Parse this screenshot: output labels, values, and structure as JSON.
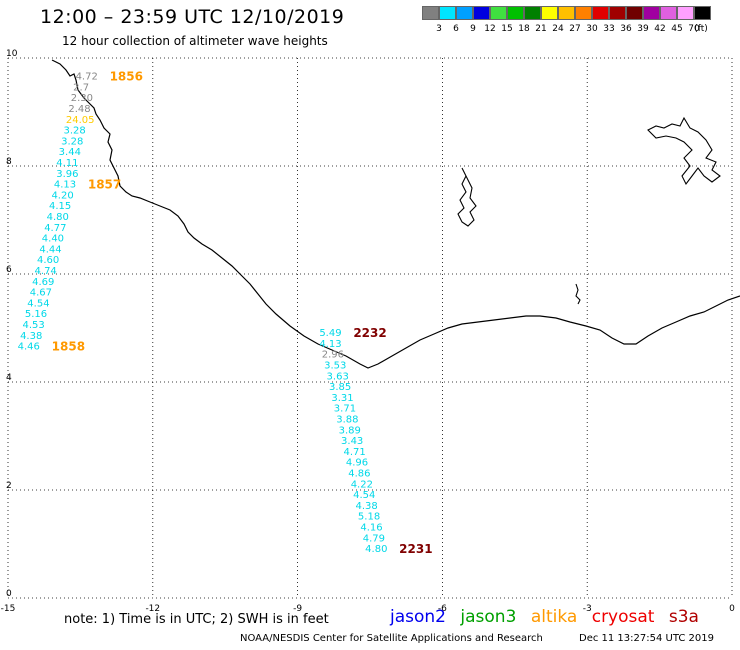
{
  "header": {
    "title": "12:00 – 23:59 UTC 12/10/2019",
    "subtitle": "12 hour collection of altimeter wave heights"
  },
  "colorbar": {
    "unit": "(ft)",
    "bins": [
      {
        "label": "3",
        "color": "#808080"
      },
      {
        "label": "6",
        "color": "#00e5ff"
      },
      {
        "label": "9",
        "color": "#00a0ff"
      },
      {
        "label": "12",
        "color": "#0000e0"
      },
      {
        "label": "15",
        "color": "#40e040"
      },
      {
        "label": "18",
        "color": "#00c000"
      },
      {
        "label": "21",
        "color": "#008000"
      },
      {
        "label": "24",
        "color": "#ffff00"
      },
      {
        "label": "27",
        "color": "#ffc000"
      },
      {
        "label": "30",
        "color": "#ff8000"
      },
      {
        "label": "33",
        "color": "#e00000"
      },
      {
        "label": "36",
        "color": "#a00000"
      },
      {
        "label": "39",
        "color": "#700000"
      },
      {
        "label": "42",
        "color": "#a000a0"
      },
      {
        "label": "45",
        "color": "#e060e0"
      },
      {
        "label": "70",
        "color": "#ffa0ff"
      },
      {
        "label": "",
        "color": "#000000"
      }
    ]
  },
  "map": {
    "lon_range": [
      -15,
      0
    ],
    "lat_range": [
      0,
      10
    ],
    "x_ticks": [
      "-15",
      "-12",
      "-9",
      "-6",
      "-3",
      "0"
    ],
    "y_ticks": [
      "0",
      "2",
      "4",
      "6",
      "8",
      "10"
    ],
    "tracks": [
      {
        "time_label": "1856",
        "time_color": "#ff9900",
        "points": [
          {
            "lon": -13.6,
            "lat": 9.6,
            "value": "4.72",
            "color": "#888888"
          },
          {
            "lon": -13.65,
            "lat": 9.4,
            "value": "2.7",
            "color": "#888888"
          },
          {
            "lon": -13.7,
            "lat": 9.2,
            "value": "2.30",
            "color": "#888888"
          },
          {
            "lon": -13.75,
            "lat": 9.0,
            "value": "2.48",
            "color": "#888888"
          },
          {
            "lon": -13.8,
            "lat": 8.8,
            "value": "24.05",
            "color": "#ffcc00"
          },
          {
            "lon": -13.85,
            "lat": 8.6,
            "value": "3.28",
            "color": "#00d8e8"
          },
          {
            "lon": -13.9,
            "lat": 8.4,
            "value": "3.28",
            "color": "#00d8e8"
          },
          {
            "lon": -13.95,
            "lat": 8.2,
            "value": "3.44",
            "color": "#00d8e8"
          },
          {
            "lon": -14.0,
            "lat": 8.0,
            "value": "4.11",
            "color": "#00d8e8"
          },
          {
            "lon": -14.0,
            "lat": 7.8,
            "value": "3.96",
            "color": "#00d8e8"
          }
        ]
      },
      {
        "time_label": "1857",
        "time_color": "#ff9900",
        "points": [
          {
            "lon": -14.05,
            "lat": 7.6,
            "value": "4.13",
            "color": "#00d8e8"
          },
          {
            "lon": -14.1,
            "lat": 7.4,
            "value": "4.20",
            "color": "#00d8e8"
          },
          {
            "lon": -14.15,
            "lat": 7.2,
            "value": "4.15",
            "color": "#00d8e8"
          },
          {
            "lon": -14.2,
            "lat": 7.0,
            "value": "4.80",
            "color": "#00d8e8"
          },
          {
            "lon": -14.25,
            "lat": 6.8,
            "value": "4.77",
            "color": "#00d8e8"
          },
          {
            "lon": -14.3,
            "lat": 6.6,
            "value": "4.40",
            "color": "#00d8e8"
          },
          {
            "lon": -14.35,
            "lat": 6.4,
            "value": "4.44",
            "color": "#00d8e8"
          },
          {
            "lon": -14.4,
            "lat": 6.2,
            "value": "4.60",
            "color": "#00d8e8"
          },
          {
            "lon": -14.45,
            "lat": 6.0,
            "value": "4.74",
            "color": "#00d8e8"
          },
          {
            "lon": -14.5,
            "lat": 5.8,
            "value": "4.69",
            "color": "#00d8e8"
          },
          {
            "lon": -14.55,
            "lat": 5.6,
            "value": "4.67",
            "color": "#00d8e8"
          },
          {
            "lon": -14.6,
            "lat": 5.4,
            "value": "4.54",
            "color": "#00d8e8"
          },
          {
            "lon": -14.65,
            "lat": 5.2,
            "value": "5.16",
            "color": "#00d8e8"
          },
          {
            "lon": -14.7,
            "lat": 5.0,
            "value": "4.53",
            "color": "#00d8e8"
          },
          {
            "lon": -14.75,
            "lat": 4.8,
            "value": "4.38",
            "color": "#00d8e8"
          }
        ]
      },
      {
        "time_label": "1858",
        "time_color": "#ff9900",
        "points": [
          {
            "lon": -14.8,
            "lat": 4.6,
            "value": "4.46",
            "color": "#00d8e8"
          }
        ]
      },
      {
        "time_label": "2232",
        "time_color": "#800000",
        "points": [
          {
            "lon": -8.55,
            "lat": 4.85,
            "value": "5.49",
            "color": "#00d8e8"
          },
          {
            "lon": -8.55,
            "lat": 4.65,
            "value": "4.13",
            "color": "#00d8e8"
          },
          {
            "lon": -8.5,
            "lat": 4.45,
            "value": "2.96",
            "color": "#888888"
          },
          {
            "lon": -8.45,
            "lat": 4.25,
            "value": "3.53",
            "color": "#00d8e8"
          },
          {
            "lon": -8.4,
            "lat": 4.05,
            "value": "3.63",
            "color": "#00d8e8"
          },
          {
            "lon": -8.35,
            "lat": 3.85,
            "value": "3.85",
            "color": "#00d8e8"
          },
          {
            "lon": -8.3,
            "lat": 3.65,
            "value": "3.31",
            "color": "#00d8e8"
          },
          {
            "lon": -8.25,
            "lat": 3.45,
            "value": "3.71",
            "color": "#00d8e8"
          },
          {
            "lon": -8.2,
            "lat": 3.25,
            "value": "3.88",
            "color": "#00d8e8"
          },
          {
            "lon": -8.15,
            "lat": 3.05,
            "value": "3.89",
            "color": "#00d8e8"
          },
          {
            "lon": -8.1,
            "lat": 2.85,
            "value": "3.43",
            "color": "#00d8e8"
          },
          {
            "lon": -8.05,
            "lat": 2.65,
            "value": "4.71",
            "color": "#00d8e8"
          },
          {
            "lon": -8.0,
            "lat": 2.45,
            "value": "4.96",
            "color": "#00d8e8"
          },
          {
            "lon": -7.95,
            "lat": 2.25,
            "value": "4.86",
            "color": "#00d8e8"
          },
          {
            "lon": -7.9,
            "lat": 2.05,
            "value": "4.22",
            "color": "#00d8e8"
          },
          {
            "lon": -7.85,
            "lat": 1.85,
            "value": "4.54",
            "color": "#00d8e8"
          },
          {
            "lon": -7.8,
            "lat": 1.65,
            "value": "4.38",
            "color": "#00d8e8"
          },
          {
            "lon": -7.75,
            "lat": 1.45,
            "value": "5.18",
            "color": "#00d8e8"
          },
          {
            "lon": -7.7,
            "lat": 1.25,
            "value": "4.16",
            "color": "#00d8e8"
          },
          {
            "lon": -7.65,
            "lat": 1.05,
            "value": "4.79",
            "color": "#00d8e8"
          }
        ]
      },
      {
        "time_label": "2231",
        "time_color": "#800000",
        "points": [
          {
            "lon": -7.6,
            "lat": 0.85,
            "value": "4.80",
            "color": "#00d8e8"
          }
        ]
      }
    ]
  },
  "footer": {
    "note": "note:  1) Time is in UTC;  2) SWH is in feet",
    "satellites": [
      {
        "name": "jason2",
        "color": "#0000ee"
      },
      {
        "name": "jason3",
        "color": "#00a000"
      },
      {
        "name": "altika",
        "color": "#ff9900"
      },
      {
        "name": "cryosat",
        "color": "#ee0000"
      },
      {
        "name": "s3a",
        "color": "#b00000"
      }
    ],
    "credit": "NOAA/NESDIS Center for Satellite Applications and Research",
    "timestamp": "Dec 11 13:27:54 UTC 2019"
  }
}
